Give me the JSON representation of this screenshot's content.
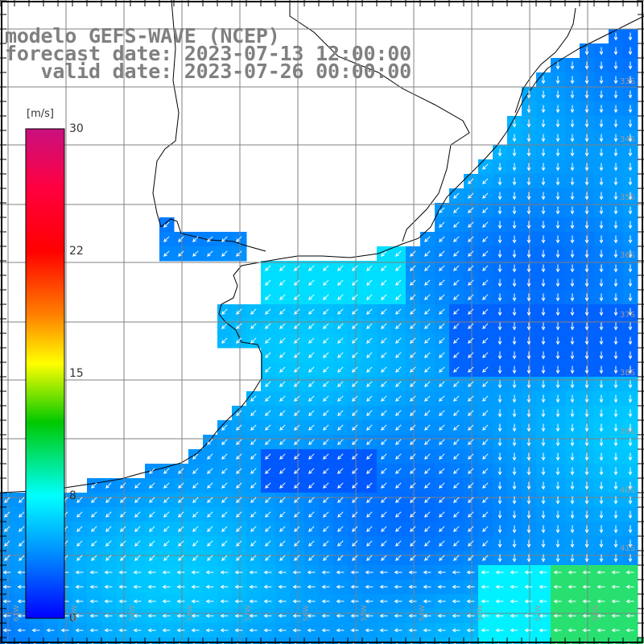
{
  "title": {
    "line1": "modelo GEFS-WAVE (NCEP)",
    "line2": "forecast date: 2023-07-13 12:00:00",
    "line3": "   valid date: 2023-07-26 00:00:00"
  },
  "colorbar": {
    "unit": "[m/s]",
    "ticks": [
      "30",
      "22",
      "15",
      "8",
      "0"
    ],
    "colors": [
      "#c8107f",
      "#ff0000",
      "#ff8000",
      "#ffff00",
      "#00c800",
      "#00ffff",
      "#0080ff",
      "#0000ff"
    ]
  },
  "map": {
    "lat_labels": [
      "33S",
      "34S",
      "35S",
      "36S",
      "37S",
      "38S",
      "39S",
      "40S",
      "41S"
    ],
    "lon_labels": [
      "61W",
      "60W",
      "59W",
      "58W",
      "57W",
      "56W",
      "55W",
      "54W",
      "53W",
      "52W",
      "51W"
    ],
    "land_color": "#ffffff",
    "grid_color": "#808080",
    "arrow_color": "#ffffff"
  }
}
